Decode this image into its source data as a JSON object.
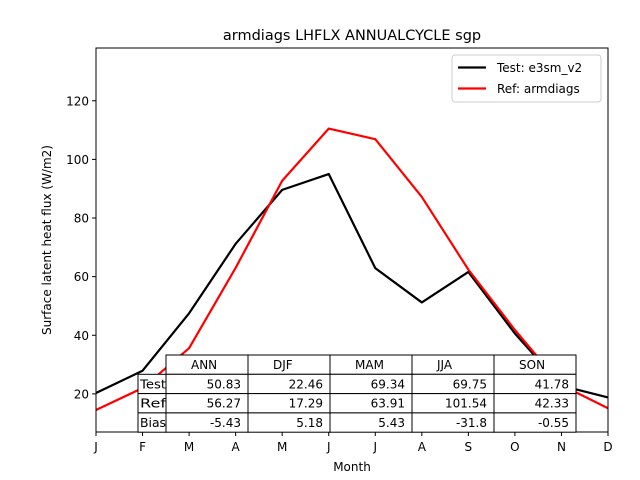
{
  "chart_data": {
    "type": "line",
    "title": "armdiags LHFLX ANNUALCYCLE sgp",
    "xlabel": "Month",
    "ylabel": "Surface latent heat flux (W/m2)",
    "x": [
      "J",
      "F",
      "M",
      "A",
      "M",
      "J",
      "J",
      "A",
      "S",
      "O",
      "N",
      "D"
    ],
    "ylim": [
      7,
      138
    ],
    "yticks": [
      20,
      40,
      60,
      80,
      100,
      120
    ],
    "grid": false,
    "legend_position": "top-right",
    "series": [
      {
        "name": "Test: e3sm_v2",
        "color": "#000000",
        "values": [
          20.3,
          27.9,
          47.5,
          71.2,
          89.6,
          95.0,
          62.9,
          51.2,
          61.6,
          40.6,
          22.8,
          18.8
        ]
      },
      {
        "name": "Ref: armdiags",
        "color": "#ff0000",
        "values": [
          14.5,
          22.0,
          35.6,
          63.0,
          92.7,
          110.5,
          106.9,
          87.2,
          62.4,
          41.8,
          23.0,
          15.1
        ]
      }
    ],
    "table": {
      "columns": [
        "ANN",
        "DJF",
        "MAM",
        "JJA",
        "SON"
      ],
      "rows": [
        {
          "label": "Test",
          "values": [
            "50.83",
            "22.46",
            "69.34",
            "69.75",
            "41.78"
          ]
        },
        {
          "label": "Ref",
          "values": [
            "56.27",
            "17.29",
            "63.91",
            "101.54",
            "42.33"
          ]
        },
        {
          "label": "Bias",
          "values": [
            "-5.43",
            "5.18",
            "5.43",
            "-31.8",
            "-0.55"
          ]
        }
      ]
    }
  }
}
